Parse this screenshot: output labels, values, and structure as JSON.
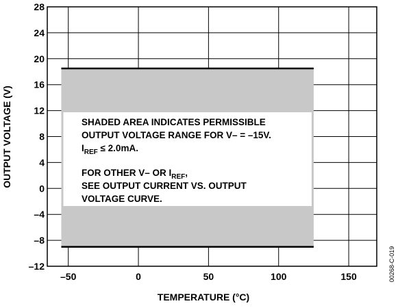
{
  "chart_data": {
    "type": "area",
    "xlabel": "TEMPERATURE (°C)",
    "ylabel": "OUTPUT VOLTAGE (V)",
    "xlim": [
      -65,
      170
    ],
    "ylim": [
      -12,
      28
    ],
    "x_ticks": [
      -50,
      0,
      50,
      100,
      150
    ],
    "x_tick_labels": [
      "–50",
      "0",
      "50",
      "100",
      "150"
    ],
    "y_ticks": [
      -12,
      -8,
      -4,
      0,
      4,
      8,
      12,
      16,
      20,
      24,
      28
    ],
    "y_tick_labels": [
      "–12",
      "–8",
      "–4",
      "0",
      "4",
      "8",
      "12",
      "16",
      "20",
      "24",
      "28"
    ],
    "grid": true,
    "region": {
      "x": [
        -55,
        125
      ],
      "y_min": -9,
      "y_max": 18.5,
      "fill": "#c8c8c8"
    },
    "annotation": {
      "line1": "SHADED AREA INDICATES PERMISSIBLE",
      "line2": "OUTPUT VOLTAGE RANGE FOR V– = –15V.",
      "line3_main": "I",
      "line3_sub": "REF",
      "line3_rest": " ≤ 2.0mA.",
      "line4_main": "FOR OTHER V– OR I",
      "line4_sub": "REF",
      "line4_rest": ",",
      "line5": "SEE OUTPUT CURRENT VS. OUTPUT",
      "line6": "VOLTAGE CURVE."
    },
    "figure_code": "00268-C-019"
  }
}
